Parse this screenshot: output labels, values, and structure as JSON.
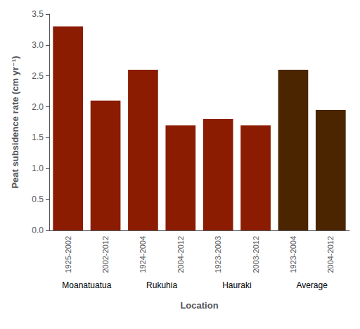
{
  "chart_data": {
    "type": "bar",
    "xlabel": "Location",
    "ylabel": "Peat subsidence rate (cm yr⁻¹)",
    "categories": [
      "1925-2002",
      "2002-2012",
      "1924-2004",
      "2004-2012",
      "1923-2003",
      "2003-2012",
      "1923-2004",
      "2004-2012"
    ],
    "groups": [
      "Moanatuatua",
      "Moanatuatua",
      "Rukuhia",
      "Rukuhia",
      "Hauraki",
      "Hauraki",
      "Average",
      "Average"
    ],
    "values": [
      3.3,
      2.1,
      2.6,
      1.7,
      1.8,
      1.7,
      2.6,
      1.95
    ],
    "colors": [
      "#8B1C02",
      "#8B1C02",
      "#8B1C02",
      "#8B1C02",
      "#8B1C02",
      "#8B1C02",
      "#4A2500",
      "#4A2500"
    ],
    "ylim": [
      0,
      3.5
    ],
    "yticks": [
      {
        "value": 0,
        "label": "0.0"
      },
      0.5,
      {
        "value": 1.0,
        "label": "1.0"
      },
      1.5,
      {
        "value": 2.0,
        "label": "2.0"
      },
      2.5,
      {
        "value": 3.0,
        "label": "3.0"
      },
      3.5
    ],
    "grid": false
  }
}
